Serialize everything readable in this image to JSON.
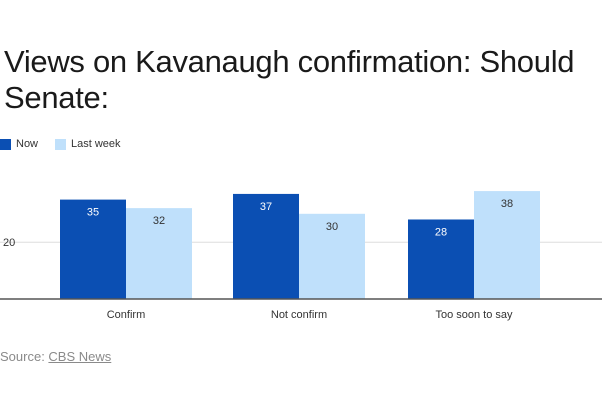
{
  "title": "Views on Kavanaugh confirmation: Should Senate:",
  "legend": [
    {
      "label": "Now",
      "color": "#0b4fb3"
    },
    {
      "label": "Last week",
      "color": "#bfe0fb"
    }
  ],
  "chart_data": {
    "type": "bar",
    "title": "Views on Kavanaugh confirmation: Should Senate:",
    "categories": [
      "Confirm",
      "Not confirm",
      "Too soon to say"
    ],
    "series": [
      {
        "name": "Now",
        "values": [
          35,
          37,
          28
        ],
        "color": "#0b4fb3"
      },
      {
        "name": "Last week",
        "values": [
          32,
          30,
          38
        ],
        "color": "#bfe0fb"
      }
    ],
    "yticks": [
      20
    ],
    "ylim": [
      0,
      40
    ],
    "grid": true,
    "legend_position": "top-left",
    "xlabel": "",
    "ylabel": ""
  },
  "source": {
    "prefix": "Source: ",
    "link_text": "CBS News"
  }
}
